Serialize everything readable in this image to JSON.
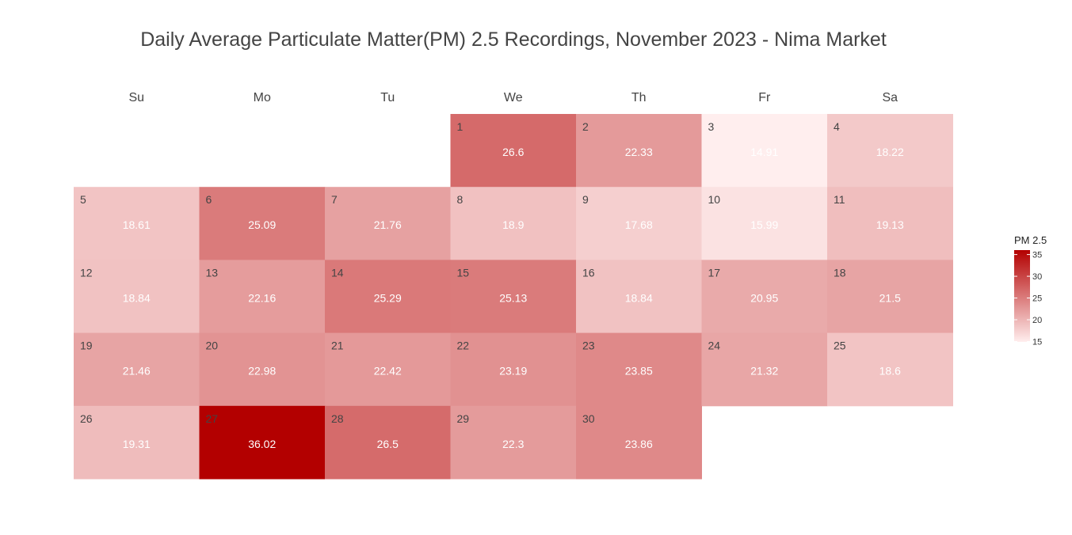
{
  "chart_data": {
    "type": "heatmap",
    "title": "Daily Average Particulate Matter(PM) 2.5 Recordings, November 2023 - Nima Market",
    "weekdays": [
      "Su",
      "Mo",
      "Tu",
      "We",
      "Th",
      "Fr",
      "Sa"
    ],
    "first_weekday_index": 3,
    "days": [
      1,
      2,
      3,
      4,
      5,
      6,
      7,
      8,
      9,
      10,
      11,
      12,
      13,
      14,
      15,
      16,
      17,
      18,
      19,
      20,
      21,
      22,
      23,
      24,
      25,
      26,
      27,
      28,
      29,
      30
    ],
    "values": [
      26.6,
      22.33,
      14.91,
      18.22,
      18.61,
      25.09,
      21.76,
      18.9,
      17.68,
      15.99,
      19.13,
      18.84,
      22.16,
      25.29,
      25.13,
      18.84,
      20.95,
      21.5,
      21.46,
      22.98,
      22.42,
      23.19,
      23.85,
      21.32,
      18.6,
      19.31,
      36.02,
      26.5,
      22.3,
      23.86
    ],
    "legend": {
      "title": "PM 2.5",
      "ticks": [
        15,
        20,
        25,
        30,
        35
      ],
      "range": [
        14.91,
        36.02
      ],
      "color_low": "#ffeeee",
      "color_high": "#b30000"
    }
  }
}
